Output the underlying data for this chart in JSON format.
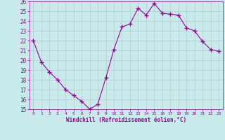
{
  "x": [
    0,
    1,
    2,
    3,
    4,
    5,
    6,
    7,
    8,
    9,
    10,
    11,
    12,
    13,
    14,
    15,
    16,
    17,
    18,
    19,
    20,
    21,
    22,
    23
  ],
  "y": [
    22.0,
    19.8,
    18.8,
    18.0,
    17.0,
    16.4,
    15.8,
    15.0,
    15.5,
    18.2,
    21.1,
    23.4,
    23.7,
    25.3,
    24.6,
    25.8,
    24.8,
    24.7,
    24.6,
    23.3,
    23.0,
    21.9,
    21.1,
    20.9
  ],
  "line_color": "#990099",
  "marker": "+",
  "marker_size": 4,
  "bg_color": "#c8eaea",
  "grid_color": "#b0cccc",
  "xlabel": "Windchill (Refroidissement éolien,°C)",
  "xlabel_color": "#990099",
  "tick_color": "#990099",
  "ylim": [
    15,
    26
  ],
  "xlim": [
    -0.5,
    23.5
  ],
  "yticks": [
    15,
    16,
    17,
    18,
    19,
    20,
    21,
    22,
    23,
    24,
    25,
    26
  ],
  "xticks": [
    0,
    1,
    2,
    3,
    4,
    5,
    6,
    7,
    8,
    9,
    10,
    11,
    12,
    13,
    14,
    15,
    16,
    17,
    18,
    19,
    20,
    21,
    22,
    23
  ],
  "figsize": [
    3.2,
    2.0
  ],
  "dpi": 100
}
